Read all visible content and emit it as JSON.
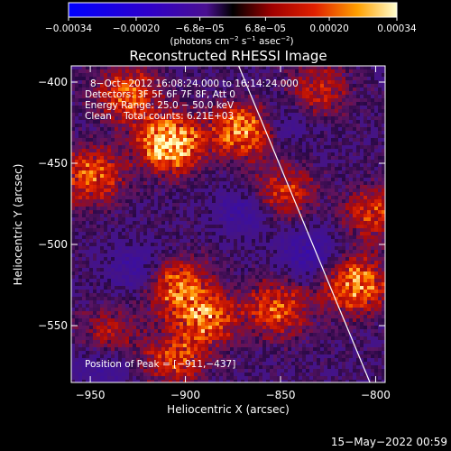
{
  "chart_data": {
    "type": "heatmap",
    "title": "Reconstructed RHESSI Image",
    "xlabel": "Heliocentric X (arcsec)",
    "ylabel": "Heliocentric Y (arcsec)",
    "xlim": [
      -960,
      -795
    ],
    "ylim": [
      -585,
      -390
    ],
    "x_ticks": [
      -950,
      -900,
      -850,
      -800
    ],
    "x_tick_labels": [
      "−950",
      "−900",
      "−850",
      "−800"
    ],
    "y_ticks": [
      -400,
      -450,
      -500,
      -550
    ],
    "y_tick_labels": [
      "−400",
      "−450",
      "−500",
      "−550"
    ],
    "colorbar": {
      "range": [
        -0.00034,
        0.00034
      ],
      "tick_values": [
        -0.00034,
        -0.0002,
        -6.8e-05,
        6.8e-05,
        0.0002,
        0.00034
      ],
      "tick_labels": [
        "−0.00034",
        "−0.00020",
        "−6.8e−05",
        "6.8e−05",
        "0.00020",
        "0.00034"
      ],
      "unit_parts": [
        "(photons cm",
        "−2",
        " s",
        "−1",
        " asec",
        "−2",
        ")"
      ]
    },
    "annotations": [
      "8−Oct−2012 16:08:24.000 to 16:14:24.000",
      "Detectors: 3F 5F 6F 7F 8F, Att 0",
      "Energy Range: 25.0 − 50.0 keV",
      "Clean    Total counts: 6.21E+03"
    ],
    "peak_label": "Position of Peak = [−911,−437]",
    "peak": [
      -911,
      -437
    ],
    "limb_line": [
      [
        -872,
        -390
      ],
      [
        -803,
        -585
      ]
    ],
    "bright_sources": [
      {
        "x": -908,
        "y": -438,
        "value": 0.00034
      },
      {
        "x": -870,
        "y": -430,
        "value": 0.00024
      },
      {
        "x": -930,
        "y": -408,
        "value": 0.00019
      },
      {
        "x": -950,
        "y": -458,
        "value": 0.0002
      },
      {
        "x": -905,
        "y": -525,
        "value": 0.0002
      },
      {
        "x": -890,
        "y": -545,
        "value": 0.00022
      },
      {
        "x": -810,
        "y": -525,
        "value": 0.00024
      },
      {
        "x": -852,
        "y": -540,
        "value": 0.00018
      },
      {
        "x": -848,
        "y": -468,
        "value": 0.00014
      },
      {
        "x": -905,
        "y": -570,
        "value": 0.00016
      },
      {
        "x": -800,
        "y": -482,
        "value": 0.00015
      },
      {
        "x": -830,
        "y": -405,
        "value": 0.00012
      },
      {
        "x": -940,
        "y": -555,
        "value": 0.0001
      }
    ],
    "dim_regions": [
      {
        "x": -870,
        "y": -480,
        "value": -8e-05
      },
      {
        "x": -925,
        "y": -515,
        "value": -9e-05
      },
      {
        "x": -835,
        "y": -505,
        "value": -0.0001
      },
      {
        "x": -945,
        "y": -575,
        "value": -7e-05
      },
      {
        "x": -850,
        "y": -425,
        "value": -6e-05
      }
    ]
  },
  "footer": {
    "timestamp": "15−May−2022 00:59"
  }
}
